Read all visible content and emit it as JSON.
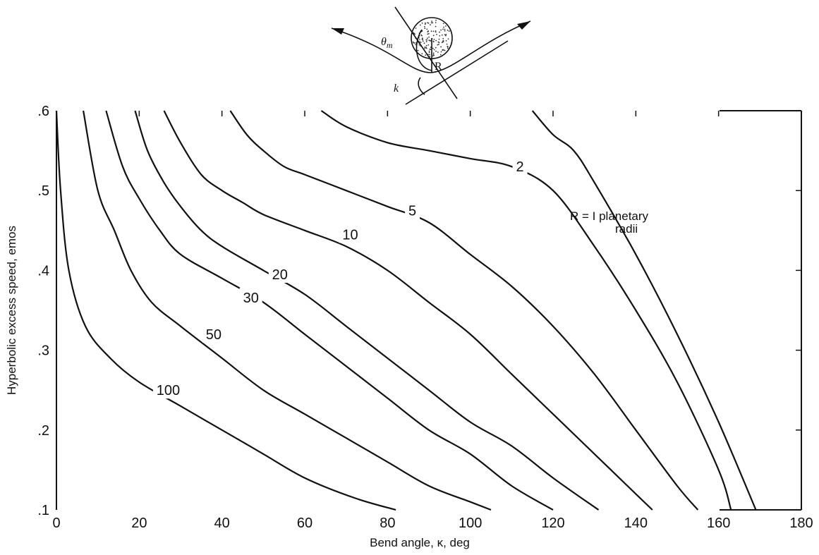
{
  "chart_data": {
    "type": "line",
    "xlabel": "Bend angle, κ, deg",
    "ylabel": "Hyperbolic excess speed, emos",
    "xlim": [
      0,
      180
    ],
    "ylim": [
      0.1,
      0.6
    ],
    "x_ticks": [
      0,
      20,
      40,
      60,
      80,
      100,
      120,
      140,
      160,
      180
    ],
    "x_tick_labels": [
      "0",
      "20",
      "40",
      "60",
      "80",
      "100",
      "120",
      "140",
      "160",
      "180"
    ],
    "y_ticks": [
      0.1,
      0.2,
      0.3,
      0.4,
      0.5,
      0.6
    ],
    "y_tick_labels": [
      ".1",
      ".2",
      ".3",
      ".4",
      ".5",
      ".6"
    ],
    "grid": false,
    "legend": "none",
    "annotation": [
      "R = I  planetary",
      "radii"
    ],
    "diagram_labels": {
      "theta": "θ",
      "theta_sub": "m",
      "radius": "R",
      "bend": "k"
    },
    "series": [
      {
        "label": "100",
        "label_at": [
          27,
          0.25
        ],
        "points": [
          [
            0,
            0.6
          ],
          [
            1,
            0.5
          ],
          [
            3,
            0.4
          ],
          [
            7,
            0.33
          ],
          [
            13,
            0.29
          ],
          [
            20,
            0.26
          ],
          [
            30,
            0.23
          ],
          [
            40,
            0.2
          ],
          [
            50,
            0.17
          ],
          [
            60,
            0.14
          ],
          [
            72,
            0.115
          ],
          [
            82,
            0.1
          ]
        ]
      },
      {
        "label": "50",
        "label_at": [
          38,
          0.32
        ],
        "points": [
          [
            6.5,
            0.6
          ],
          [
            10,
            0.5
          ],
          [
            14,
            0.45
          ],
          [
            18,
            0.4
          ],
          [
            23,
            0.36
          ],
          [
            30,
            0.33
          ],
          [
            40,
            0.29
          ],
          [
            50,
            0.25
          ],
          [
            60,
            0.22
          ],
          [
            70,
            0.19
          ],
          [
            80,
            0.16
          ],
          [
            90,
            0.13
          ],
          [
            100,
            0.11
          ],
          [
            105,
            0.1
          ]
        ]
      },
      {
        "label": "30",
        "label_at": [
          47,
          0.366
        ],
        "points": [
          [
            12,
            0.6
          ],
          [
            16,
            0.53
          ],
          [
            20,
            0.49
          ],
          [
            25,
            0.45
          ],
          [
            30,
            0.42
          ],
          [
            40,
            0.39
          ],
          [
            50,
            0.36
          ],
          [
            60,
            0.32
          ],
          [
            70,
            0.28
          ],
          [
            80,
            0.24
          ],
          [
            90,
            0.2
          ],
          [
            100,
            0.17
          ],
          [
            110,
            0.13
          ],
          [
            120,
            0.1
          ]
        ]
      },
      {
        "label": "20",
        "label_at": [
          54,
          0.395
        ],
        "points": [
          [
            19,
            0.6
          ],
          [
            22,
            0.55
          ],
          [
            26,
            0.51
          ],
          [
            30,
            0.48
          ],
          [
            35,
            0.45
          ],
          [
            40,
            0.43
          ],
          [
            50,
            0.4
          ],
          [
            60,
            0.37
          ],
          [
            70,
            0.33
          ],
          [
            80,
            0.29
          ],
          [
            90,
            0.25
          ],
          [
            100,
            0.21
          ],
          [
            110,
            0.18
          ],
          [
            120,
            0.14
          ],
          [
            131,
            0.1
          ]
        ]
      },
      {
        "label": "10",
        "label_at": [
          71,
          0.445
        ],
        "points": [
          [
            26,
            0.6
          ],
          [
            30,
            0.56
          ],
          [
            35,
            0.52
          ],
          [
            40,
            0.5
          ],
          [
            45,
            0.485
          ],
          [
            50,
            0.47
          ],
          [
            60,
            0.45
          ],
          [
            70,
            0.43
          ],
          [
            80,
            0.4
          ],
          [
            90,
            0.36
          ],
          [
            100,
            0.32
          ],
          [
            110,
            0.27
          ],
          [
            120,
            0.22
          ],
          [
            130,
            0.17
          ],
          [
            140,
            0.12
          ],
          [
            144,
            0.1
          ]
        ]
      },
      {
        "label": "5",
        "label_at": [
          86,
          0.475
        ],
        "points": [
          [
            42,
            0.6
          ],
          [
            46,
            0.57
          ],
          [
            50,
            0.55
          ],
          [
            55,
            0.53
          ],
          [
            60,
            0.52
          ],
          [
            70,
            0.5
          ],
          [
            80,
            0.48
          ],
          [
            90,
            0.46
          ],
          [
            100,
            0.42
          ],
          [
            110,
            0.38
          ],
          [
            120,
            0.33
          ],
          [
            130,
            0.27
          ],
          [
            140,
            0.2
          ],
          [
            150,
            0.13
          ],
          [
            155,
            0.1
          ]
        ]
      },
      {
        "label": "2",
        "label_at": [
          112,
          0.53
        ],
        "points": [
          [
            64,
            0.6
          ],
          [
            70,
            0.58
          ],
          [
            80,
            0.56
          ],
          [
            90,
            0.55
          ],
          [
            100,
            0.54
          ],
          [
            110,
            0.53
          ],
          [
            120,
            0.5
          ],
          [
            130,
            0.43
          ],
          [
            140,
            0.35
          ],
          [
            150,
            0.26
          ],
          [
            160,
            0.15
          ],
          [
            163,
            0.1
          ]
        ]
      },
      {
        "label": "R=1",
        "label_at": [],
        "points": [
          [
            115,
            0.6
          ],
          [
            120,
            0.57
          ],
          [
            125,
            0.55
          ],
          [
            130,
            0.51
          ],
          [
            140,
            0.42
          ],
          [
            150,
            0.32
          ],
          [
            160,
            0.21
          ],
          [
            169,
            0.1
          ]
        ]
      }
    ]
  }
}
